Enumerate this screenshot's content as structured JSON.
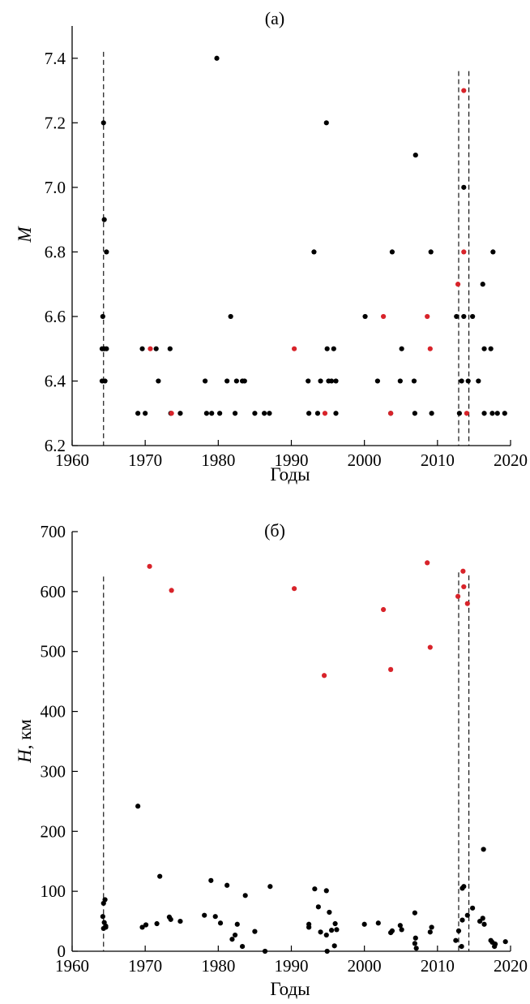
{
  "chart_data": [
    {
      "type": "scatter",
      "panel_label": "(а)",
      "xlabel": "Годы",
      "ylabel": "M",
      "xlim": [
        1960,
        2020
      ],
      "ylim": [
        6.2,
        7.5
      ],
      "xticks": [
        1960,
        1970,
        1980,
        1990,
        2000,
        2010,
        2020
      ],
      "xtick_labels": [
        "1960",
        "1970",
        "1980",
        "1990",
        "2000",
        "2010",
        "2020"
      ],
      "yticks": [
        6.2,
        6.4,
        6.6,
        6.8,
        7.0,
        7.2,
        7.4
      ],
      "ytick_labels": [
        "6.2",
        "6.4",
        "6.6",
        "6.8",
        "7.0",
        "7.2",
        "7.4"
      ],
      "dashed_lines": [
        {
          "x": 1964.3,
          "y_top": 7.42
        },
        {
          "x": 2012.9,
          "y_top": 7.36
        },
        {
          "x": 2014.3,
          "y_top": 7.36
        }
      ],
      "series": [
        {
          "color": "#000000",
          "points": [
            [
              1964.3,
              7.2
            ],
            [
              1964.4,
              6.9
            ],
            [
              1964.7,
              6.8
            ],
            [
              1964.2,
              6.6
            ],
            [
              1964.1,
              6.5
            ],
            [
              1964.4,
              6.5
            ],
            [
              1964.7,
              6.5
            ],
            [
              1964.1,
              6.4
            ],
            [
              1964.5,
              6.4
            ],
            [
              1969.0,
              6.3
            ],
            [
              1969.6,
              6.5
            ],
            [
              1970.0,
              6.3
            ],
            [
              1971.5,
              6.5
            ],
            [
              1971.8,
              6.4
            ],
            [
              1973.4,
              6.5
            ],
            [
              1973.5,
              6.3
            ],
            [
              1974.8,
              6.3
            ],
            [
              1978.2,
              6.4
            ],
            [
              1978.4,
              6.3
            ],
            [
              1979.1,
              6.3
            ],
            [
              1979.8,
              7.4
            ],
            [
              1980.2,
              6.3
            ],
            [
              1981.2,
              6.4
            ],
            [
              1981.7,
              6.6
            ],
            [
              1982.3,
              6.3
            ],
            [
              1982.5,
              6.4
            ],
            [
              1983.3,
              6.4
            ],
            [
              1983.6,
              6.4
            ],
            [
              1985.0,
              6.3
            ],
            [
              1986.3,
              6.3
            ],
            [
              1987.0,
              6.3
            ],
            [
              1992.3,
              6.4
            ],
            [
              1992.4,
              6.3
            ],
            [
              1993.1,
              6.8
            ],
            [
              1993.6,
              6.3
            ],
            [
              1994.0,
              6.4
            ],
            [
              1994.8,
              7.2
            ],
            [
              1994.9,
              6.5
            ],
            [
              1995.1,
              6.4
            ],
            [
              1995.5,
              6.4
            ],
            [
              1995.8,
              6.5
            ],
            [
              1996.1,
              6.4
            ],
            [
              1996.1,
              6.3
            ],
            [
              2000.1,
              6.6
            ],
            [
              2001.8,
              6.4
            ],
            [
              2003.6,
              6.3
            ],
            [
              2003.8,
              6.8
            ],
            [
              2004.9,
              6.4
            ],
            [
              2005.1,
              6.5
            ],
            [
              2006.8,
              6.4
            ],
            [
              2006.9,
              6.3
            ],
            [
              2007.0,
              7.1
            ],
            [
              2009.1,
              6.8
            ],
            [
              2009.2,
              6.3
            ],
            [
              2012.6,
              6.6
            ],
            [
              2013.0,
              6.3
            ],
            [
              2013.3,
              6.4
            ],
            [
              2013.6,
              7.0
            ],
            [
              2013.6,
              6.6
            ],
            [
              2014.2,
              6.4
            ],
            [
              2014.8,
              6.6
            ],
            [
              2015.6,
              6.4
            ],
            [
              2016.2,
              6.7
            ],
            [
              2016.4,
              6.5
            ],
            [
              2016.4,
              6.3
            ],
            [
              2017.3,
              6.5
            ],
            [
              2017.6,
              6.8
            ],
            [
              2017.5,
              6.3
            ],
            [
              2018.2,
              6.3
            ],
            [
              2019.2,
              6.3
            ]
          ]
        },
        {
          "color": "#d8232a",
          "points": [
            [
              1970.7,
              6.5
            ],
            [
              1973.6,
              6.3
            ],
            [
              1990.4,
              6.5
            ],
            [
              1994.6,
              6.3
            ],
            [
              2002.6,
              6.6
            ],
            [
              2003.6,
              6.3
            ],
            [
              2008.6,
              6.6
            ],
            [
              2009.0,
              6.5
            ],
            [
              2012.8,
              6.7
            ],
            [
              2013.6,
              7.3
            ],
            [
              2013.6,
              6.8
            ],
            [
              2014.0,
              6.3
            ]
          ]
        }
      ]
    },
    {
      "type": "scatter",
      "panel_label": "(б)",
      "xlabel": "Годы",
      "ylabel_main": "H",
      "ylabel_unit": ", км",
      "xlim": [
        1960,
        2020
      ],
      "ylim": [
        0,
        700
      ],
      "xticks": [
        1960,
        1970,
        1980,
        1990,
        2000,
        2010,
        2020
      ],
      "xtick_labels": [
        "1960",
        "1970",
        "1980",
        "1990",
        "2000",
        "2010",
        "2020"
      ],
      "yticks": [
        0,
        100,
        200,
        300,
        400,
        500,
        600,
        700
      ],
      "ytick_labels": [
        "0",
        "100",
        "200",
        "300",
        "400",
        "500",
        "600",
        "700"
      ],
      "dashed_lines": [
        {
          "x": 1964.3,
          "y_top": 625
        },
        {
          "x": 2012.9,
          "y_top": 632
        },
        {
          "x": 2014.3,
          "y_top": 627
        }
      ],
      "series": [
        {
          "color": "#000000",
          "points": [
            [
              1964.3,
              80
            ],
            [
              1964.5,
              86
            ],
            [
              1964.2,
              58
            ],
            [
              1964.4,
              48
            ],
            [
              1964.6,
              42
            ],
            [
              1964.3,
              38
            ],
            [
              1964.6,
              40
            ],
            [
              1969.0,
              242
            ],
            [
              1969.6,
              40
            ],
            [
              1970.1,
              44
            ],
            [
              1971.6,
              46
            ],
            [
              1972.0,
              125
            ],
            [
              1973.3,
              57
            ],
            [
              1973.5,
              53
            ],
            [
              1974.8,
              50
            ],
            [
              1978.1,
              60
            ],
            [
              1979.0,
              118
            ],
            [
              1979.6,
              58
            ],
            [
              1980.3,
              47
            ],
            [
              1981.2,
              110
            ],
            [
              1981.9,
              20
            ],
            [
              1982.3,
              27
            ],
            [
              1982.6,
              45
            ],
            [
              1983.3,
              8
            ],
            [
              1983.7,
              93
            ],
            [
              1985.0,
              33
            ],
            [
              1986.4,
              0
            ],
            [
              1987.1,
              108
            ],
            [
              1992.4,
              45
            ],
            [
              1992.4,
              40
            ],
            [
              1993.2,
              104
            ],
            [
              1993.7,
              74
            ],
            [
              1994.0,
              32
            ],
            [
              1994.8,
              101
            ],
            [
              1994.8,
              27
            ],
            [
              1995.2,
              65
            ],
            [
              1995.5,
              35
            ],
            [
              1995.9,
              9
            ],
            [
              1996.0,
              46
            ],
            [
              1996.2,
              36
            ],
            [
              1994.9,
              0
            ],
            [
              2000.0,
              45
            ],
            [
              2001.9,
              47
            ],
            [
              2003.6,
              31
            ],
            [
              2003.8,
              34
            ],
            [
              2004.9,
              43
            ],
            [
              2005.1,
              36
            ],
            [
              2006.9,
              64
            ],
            [
              2007.0,
              22
            ],
            [
              2006.9,
              13
            ],
            [
              2007.1,
              5
            ],
            [
              2009.0,
              32
            ],
            [
              2009.2,
              40
            ],
            [
              2012.5,
              18
            ],
            [
              2012.9,
              34
            ],
            [
              2013.3,
              8
            ],
            [
              2013.4,
              52
            ],
            [
              2013.4,
              105
            ],
            [
              2013.6,
              108
            ],
            [
              2014.1,
              60
            ],
            [
              2014.8,
              72
            ],
            [
              2015.8,
              50
            ],
            [
              2016.2,
              55
            ],
            [
              2016.3,
              170
            ],
            [
              2016.4,
              45
            ],
            [
              2017.3,
              18
            ],
            [
              2017.5,
              15
            ],
            [
              2017.8,
              8
            ],
            [
              2017.9,
              12
            ],
            [
              2019.3,
              16
            ]
          ]
        },
        {
          "color": "#d8232a",
          "points": [
            [
              1970.6,
              642
            ],
            [
              1973.6,
              602
            ],
            [
              1990.4,
              605
            ],
            [
              1994.5,
              460
            ],
            [
              2002.6,
              570
            ],
            [
              2003.6,
              470
            ],
            [
              2008.6,
              648
            ],
            [
              2009.0,
              507
            ],
            [
              2012.8,
              592
            ],
            [
              2013.5,
              634
            ],
            [
              2013.6,
              608
            ],
            [
              2014.1,
              580
            ]
          ]
        }
      ]
    }
  ]
}
